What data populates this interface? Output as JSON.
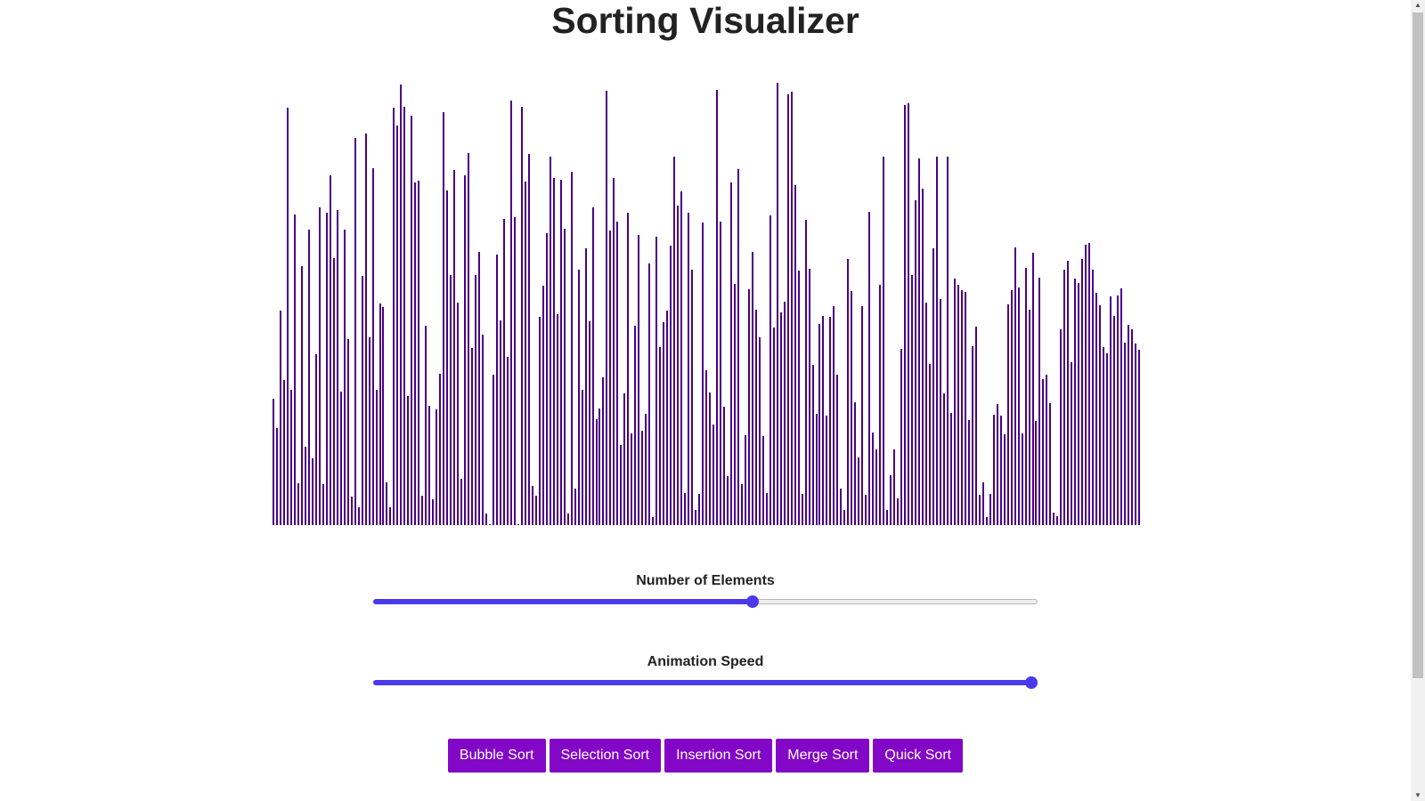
{
  "title": "Sorting Visualizer",
  "bar_color": "#4b0082",
  "bar_max_value": 500,
  "bars": [
    142,
    109,
    241,
    163,
    469,
    152,
    349,
    47,
    291,
    88,
    332,
    75,
    192,
    357,
    46,
    351,
    393,
    300,
    354,
    150,
    332,
    209,
    32,
    435,
    20,
    280,
    440,
    211,
    401,
    152,
    249,
    245,
    48,
    20,
    469,
    449,
    495,
    470,
    145,
    460,
    385,
    387,
    33,
    224,
    134,
    29,
    130,
    170,
    464,
    376,
    281,
    399,
    250,
    52,
    393,
    418,
    199,
    281,
    307,
    214,
    13,
    1,
    169,
    304,
    230,
    344,
    189,
    477,
    346,
    1,
    470,
    386,
    417,
    44,
    33,
    234,
    269,
    328,
    414,
    390,
    237,
    388,
    333,
    13,
    397,
    41,
    287,
    152,
    311,
    229,
    357,
    119,
    131,
    166,
    488,
    331,
    390,
    341,
    90,
    148,
    351,
    103,
    224,
    326,
    106,
    125,
    294,
    9,
    324,
    200,
    228,
    241,
    314,
    414,
    359,
    375,
    36,
    351,
    287,
    17,
    35,
    340,
    174,
    149,
    113,
    489,
    341,
    133,
    55,
    385,
    271,
    400,
    46,
    101,
    265,
    307,
    242,
    211,
    100,
    36,
    348,
    222,
    497,
    239,
    251,
    484,
    487,
    382,
    286,
    35,
    343,
    288,
    180,
    125,
    226,
    235,
    123,
    234,
    246,
    169,
    41,
    17,
    299,
    263,
    138,
    76,
    246,
    34,
    352,
    104,
    85,
    270,
    414,
    17,
    56,
    85,
    30,
    198,
    472,
    474,
    281,
    365,
    412,
    378,
    250,
    181,
    311,
    414,
    254,
    148,
    414,
    126,
    277,
    270,
    264,
    262,
    118,
    201,
    223,
    34,
    48,
    9,
    35,
    124,
    136,
    123,
    102,
    248,
    264,
    312,
    267,
    103,
    289,
    242,
    306,
    117,
    278,
    164,
    169,
    137,
    14,
    10,
    220,
    287,
    297,
    183,
    277,
    272,
    299,
    315,
    317,
    287,
    261,
    247,
    200,
    193,
    257,
    235,
    258,
    266,
    205,
    225,
    220,
    204,
    197
  ],
  "controls": {
    "elements_label": "Number of Elements",
    "elements_value": 0.573,
    "speed_label": "Animation Speed",
    "speed_value": 1.0
  },
  "slider_colors": {
    "fill": "#4a3aea",
    "track": "#efefef"
  },
  "buttons": {
    "bubble": "Bubble Sort",
    "selection": "Selection Sort",
    "insertion": "Insertion Sort",
    "merge": "Merge Sort",
    "quick": "Quick Sort"
  },
  "button_color": "#8207c7",
  "icons": {
    "scroll_up": "▲",
    "scroll_down": "▼"
  }
}
